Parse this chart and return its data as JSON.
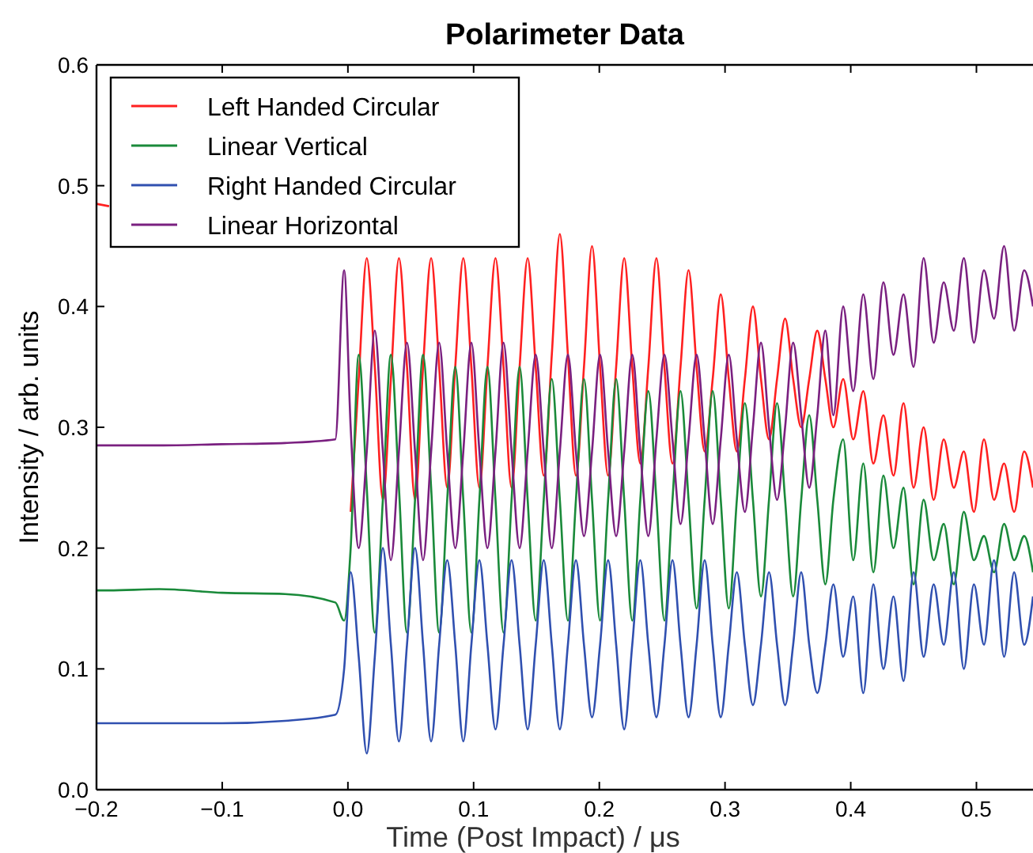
{
  "chart_data": {
    "type": "line",
    "title": "Polarimeter Data",
    "xlabel": "Time (Post Impact) / μs",
    "ylabel": "Intensity / arb. units",
    "xlim": [
      -0.2,
      0.545
    ],
    "ylim": [
      0,
      0.6
    ],
    "xticks": [
      {
        "value": -0.2,
        "label": "−0.2"
      },
      {
        "value": -0.1,
        "label": "−0.1"
      },
      {
        "value": 0,
        "label": "0.0"
      },
      0.1,
      0.2,
      0.3,
      0.4,
      0.5
    ],
    "yticks": [
      {
        "value": 0,
        "label": "0.0"
      },
      0.1,
      0.2,
      0.3,
      0.4,
      0.5,
      0.6
    ],
    "grid": false,
    "legend": "top left",
    "marker": "none",
    "line_style": "solid",
    "x": [
      -0.2,
      -0.19,
      -0.15,
      -0.1,
      -0.05,
      -0.01,
      -0.003,
      0.0022,
      0.0086,
      0.015,
      0.0214,
      0.0278,
      0.0342,
      0.0406,
      0.047,
      0.0534,
      0.0598,
      0.0662,
      0.0726,
      0.079,
      0.0854,
      0.0918,
      0.0982,
      0.1046,
      0.111,
      0.1174,
      0.1238,
      0.1302,
      0.1366,
      0.143,
      0.1494,
      0.1558,
      0.1622,
      0.1686,
      0.175,
      0.1814,
      0.1878,
      0.1942,
      0.2006,
      0.207,
      0.2134,
      0.2198,
      0.2262,
      0.2326,
      0.239,
      0.2454,
      0.2518,
      0.2582,
      0.2646,
      0.271,
      0.2774,
      0.2838,
      0.2902,
      0.2966,
      0.303,
      0.3094,
      0.3158,
      0.3222,
      0.3286,
      0.335,
      0.3414,
      0.3478,
      0.3542,
      0.3606,
      0.367,
      0.3734,
      0.3798,
      0.3862,
      0.394,
      0.402,
      0.41,
      0.418,
      0.426,
      0.434,
      0.442,
      0.45,
      0.458,
      0.466,
      0.474,
      0.482,
      0.49,
      0.498,
      0.506,
      0.514,
      0.522,
      0.53,
      0.538,
      0.545
    ],
    "series": [
      {
        "name": "Left Handed Circular",
        "color": "#ff2020",
        "values": [
          0.485,
          0.483,
          null,
          null,
          null,
          null,
          null,
          0.23,
          0.34,
          0.44,
          0.35,
          0.24,
          0.34,
          0.44,
          0.35,
          0.24,
          0.35,
          0.44,
          0.35,
          0.25,
          0.35,
          0.44,
          0.35,
          0.25,
          0.35,
          0.44,
          0.35,
          0.25,
          0.35,
          0.44,
          0.35,
          0.26,
          0.36,
          0.46,
          0.36,
          0.26,
          0.35,
          0.45,
          0.35,
          0.26,
          0.35,
          0.44,
          0.35,
          0.27,
          0.35,
          0.44,
          0.35,
          0.27,
          0.35,
          0.43,
          0.35,
          0.28,
          0.34,
          0.41,
          0.34,
          0.28,
          0.34,
          0.4,
          0.34,
          0.29,
          0.34,
          0.39,
          0.34,
          0.3,
          0.34,
          0.38,
          0.34,
          0.3,
          0.34,
          0.29,
          0.33,
          0.27,
          0.31,
          0.26,
          0.32,
          0.25,
          0.3,
          0.24,
          0.29,
          0.25,
          0.28,
          0.23,
          0.29,
          0.24,
          0.27,
          0.23,
          0.28,
          0.25
        ]
      },
      {
        "name": "Linear Vertical",
        "color": "#1a8a3a",
        "values": [
          0.165,
          0.165,
          0.166,
          0.163,
          0.162,
          0.155,
          0.14,
          0.2,
          0.36,
          0.25,
          0.13,
          0.24,
          0.36,
          0.25,
          0.13,
          0.24,
          0.36,
          0.25,
          0.13,
          0.24,
          0.35,
          0.24,
          0.13,
          0.24,
          0.35,
          0.24,
          0.13,
          0.24,
          0.35,
          0.24,
          0.14,
          0.24,
          0.34,
          0.24,
          0.14,
          0.24,
          0.34,
          0.24,
          0.14,
          0.24,
          0.34,
          0.24,
          0.14,
          0.24,
          0.33,
          0.24,
          0.14,
          0.24,
          0.33,
          0.24,
          0.15,
          0.24,
          0.33,
          0.24,
          0.15,
          0.24,
          0.32,
          0.24,
          0.16,
          0.24,
          0.32,
          0.24,
          0.16,
          0.24,
          0.31,
          0.24,
          0.17,
          0.24,
          0.29,
          0.19,
          0.27,
          0.18,
          0.26,
          0.2,
          0.25,
          0.17,
          0.24,
          0.19,
          0.22,
          0.17,
          0.23,
          0.19,
          0.21,
          0.18,
          0.22,
          0.19,
          0.21,
          0.18
        ]
      },
      {
        "name": "Right Handed Circular",
        "color": "#3050b0",
        "values": [
          0.055,
          0.055,
          0.055,
          0.055,
          0.057,
          0.062,
          0.1,
          0.18,
          0.11,
          0.03,
          0.11,
          0.2,
          0.12,
          0.04,
          0.12,
          0.2,
          0.12,
          0.04,
          0.12,
          0.19,
          0.12,
          0.04,
          0.12,
          0.19,
          0.12,
          0.05,
          0.12,
          0.19,
          0.12,
          0.05,
          0.12,
          0.19,
          0.12,
          0.05,
          0.12,
          0.19,
          0.12,
          0.06,
          0.12,
          0.19,
          0.12,
          0.05,
          0.12,
          0.19,
          0.12,
          0.06,
          0.12,
          0.19,
          0.12,
          0.06,
          0.12,
          0.19,
          0.12,
          0.06,
          0.12,
          0.18,
          0.12,
          0.07,
          0.12,
          0.18,
          0.12,
          0.07,
          0.12,
          0.18,
          0.12,
          0.08,
          0.12,
          0.17,
          0.11,
          0.16,
          0.08,
          0.17,
          0.1,
          0.16,
          0.09,
          0.18,
          0.11,
          0.17,
          0.12,
          0.18,
          0.1,
          0.17,
          0.12,
          0.19,
          0.11,
          0.18,
          0.12,
          0.16
        ]
      },
      {
        "name": "Linear Horizontal",
        "color": "#7a2080",
        "values": [
          0.285,
          0.285,
          0.285,
          0.286,
          0.287,
          0.29,
          0.43,
          0.3,
          0.2,
          0.28,
          0.38,
          0.28,
          0.19,
          0.28,
          0.37,
          0.28,
          0.19,
          0.28,
          0.37,
          0.28,
          0.2,
          0.28,
          0.37,
          0.28,
          0.2,
          0.28,
          0.37,
          0.28,
          0.2,
          0.28,
          0.36,
          0.28,
          0.2,
          0.28,
          0.36,
          0.28,
          0.21,
          0.28,
          0.36,
          0.28,
          0.21,
          0.28,
          0.36,
          0.28,
          0.21,
          0.29,
          0.36,
          0.29,
          0.22,
          0.29,
          0.36,
          0.29,
          0.22,
          0.29,
          0.36,
          0.29,
          0.23,
          0.3,
          0.37,
          0.3,
          0.24,
          0.3,
          0.37,
          0.31,
          0.25,
          0.31,
          0.38,
          0.31,
          0.4,
          0.33,
          0.41,
          0.34,
          0.42,
          0.36,
          0.41,
          0.35,
          0.44,
          0.37,
          0.42,
          0.38,
          0.44,
          0.37,
          0.43,
          0.39,
          0.45,
          0.38,
          0.43,
          0.4
        ]
      }
    ]
  }
}
